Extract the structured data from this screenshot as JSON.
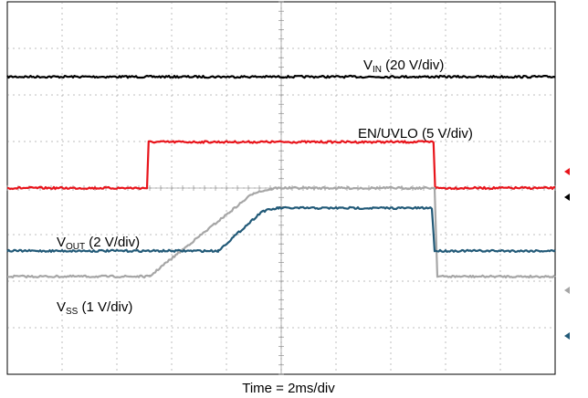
{
  "chart_data": {
    "type": "line",
    "title": "",
    "grid": true,
    "x_divisions": 10,
    "y_divisions": 8,
    "xlabel": "Time = 2ms/div",
    "x_unit_per_div_ms": 2,
    "xlim": [
      0,
      10
    ],
    "ylim": [
      -4,
      4
    ],
    "series": [
      {
        "name": "VIN",
        "label": {
          "main": "V",
          "sub": "IN",
          "scale": " (20 V/div)"
        },
        "color": "#000000",
        "points": [
          [
            0,
            2.39
          ],
          [
            10,
            2.39
          ]
        ]
      },
      {
        "name": "EN/UVLO",
        "label": {
          "main": "EN/UVLO",
          "sub": "",
          "scale": " (5 V/div)"
        },
        "color": "#e8141b",
        "points": [
          [
            0,
            0.0
          ],
          [
            2.55,
            0.0
          ],
          [
            2.58,
            0.99
          ],
          [
            7.78,
            0.99
          ],
          [
            7.81,
            0.0
          ],
          [
            10,
            0.0
          ]
        ]
      },
      {
        "name": "VSS",
        "label": {
          "main": "V",
          "sub": "SS",
          "scale": " (1 V/div)"
        },
        "color": "#a6a6a6",
        "points": [
          [
            0,
            -1.9
          ],
          [
            2.6,
            -1.9
          ],
          [
            2.8,
            -1.7
          ],
          [
            4.5,
            -0.1
          ],
          [
            4.9,
            0.0
          ],
          [
            7.8,
            0.0
          ],
          [
            7.85,
            -1.9
          ],
          [
            10,
            -1.9
          ]
        ]
      },
      {
        "name": "VOUT",
        "label": {
          "main": "V",
          "sub": "OUT",
          "scale": " (2 V/div)"
        },
        "color": "#225a78",
        "points": [
          [
            0,
            -1.35
          ],
          [
            3.85,
            -1.35
          ],
          [
            4.65,
            -0.5
          ],
          [
            4.95,
            -0.43
          ],
          [
            7.75,
            -0.43
          ],
          [
            7.8,
            -1.35
          ],
          [
            10,
            -1.35
          ]
        ]
      }
    ],
    "marker_colors": {
      "en_uvlo_ref": "#e8141b",
      "vin_ref": "#000000",
      "vss_ref": "#a6a6a6",
      "vout_ref": "#225a78"
    }
  }
}
